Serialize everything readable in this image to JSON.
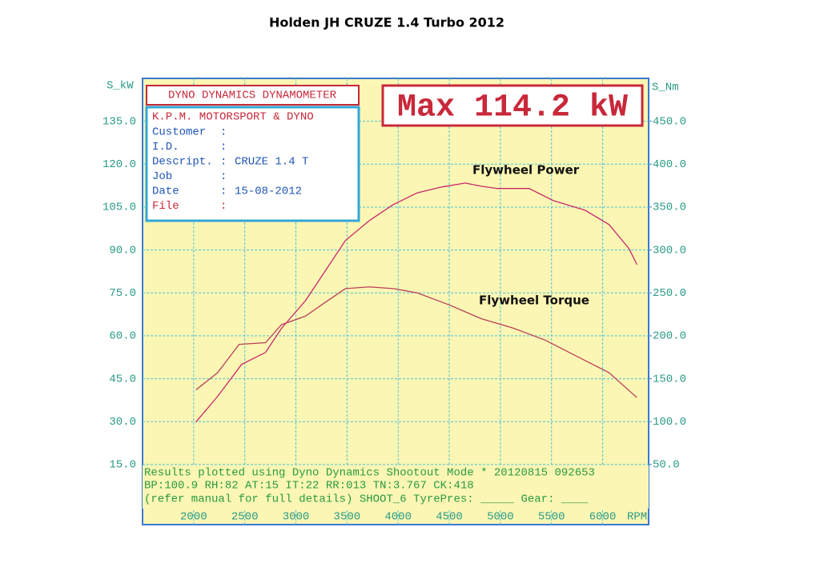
{
  "chart_data": {
    "type": "line",
    "title": "Holden JH CRUZE 1.4 Turbo 2012",
    "ylabel": "S_kW",
    "y2label": "S_Nm",
    "xunit": "RPM",
    "header": "DYNO DYNAMICS DYNAMOMETER",
    "max_label": "Max 114.2 kW",
    "info_box": {
      "heading": "K.P.M. MOTORSPORT & DYNO",
      "fields": [
        {
          "label": "Customer"
        },
        {
          "label": "I.D."
        },
        {
          "label": "Descript.",
          "value": "CRUZE 1.4 T"
        },
        {
          "label": "Job"
        },
        {
          "label": "Date",
          "value": "15-08-2012"
        },
        {
          "label": "File"
        }
      ]
    },
    "footer": [
      "Results plotted using Dyno Dynamics Shootout Mode * 20120815 092653",
      "BP:100.9 RH:82 AT:15 IT:22  RR:013 TN:3.767 CK:418",
      "(refer manual for full details) SHOOT_6  TyrePres: _____ Gear: ____"
    ],
    "xlim": [
      1500,
      6450
    ],
    "xticks": [
      2000,
      2500,
      3000,
      3500,
      4000,
      4500,
      5000,
      5500,
      6000
    ],
    "ylim": [
      -6,
      150
    ],
    "yticks": [
      {
        "value": 15,
        "label": "15.0"
      },
      {
        "value": 30,
        "label": "30.0"
      },
      {
        "value": 45,
        "label": "45.0"
      },
      {
        "value": 60,
        "label": "60.0"
      },
      {
        "value": 75,
        "label": "75.0"
      },
      {
        "value": 90,
        "label": "90.0"
      },
      {
        "value": 105,
        "label": "105.0"
      },
      {
        "value": 120,
        "label": "120.0"
      },
      {
        "value": 135,
        "label": "135.0"
      }
    ],
    "y2lim": [
      -20,
      500
    ],
    "y2ticks": [
      {
        "value": 50,
        "label": "50.0"
      },
      {
        "value": 100,
        "label": "100.0"
      },
      {
        "value": 150,
        "label": "150.0"
      },
      {
        "value": 200,
        "label": "200.0"
      },
      {
        "value": 250,
        "label": "250.0"
      },
      {
        "value": 300,
        "label": "300.0"
      },
      {
        "value": 350,
        "label": "350.0"
      },
      {
        "value": 400,
        "label": "400.0"
      },
      {
        "value": 450,
        "label": "450.0"
      }
    ],
    "grid": true,
    "series": [
      {
        "name": "Flywheel Power",
        "color": "#c8286a",
        "x": [
          2023,
          2234,
          2469,
          2703,
          2859,
          3094,
          3250,
          3484,
          3719,
          3953,
          4188,
          4422,
          4656,
          4813,
          4969,
          5281,
          5516,
          5828,
          6063,
          6258,
          6336
        ],
        "values": [
          29.9,
          38.8,
          50,
          54.2,
          62.6,
          72.3,
          80.7,
          93.3,
          100.3,
          105.9,
          110,
          112,
          113.4,
          112.3,
          111.5,
          111.5,
          107.3,
          103.9,
          98.9,
          90.5,
          84.9
        ]
      },
      {
        "name": "Flywheel Torque",
        "color": "#b8405a",
        "axis": "y2",
        "x": [
          2023,
          2234,
          2445,
          2703,
          2859,
          3094,
          3250,
          3484,
          3719,
          3953,
          4188,
          4500,
          4813,
          5125,
          5438,
          5750,
          6063,
          6336
        ],
        "values": [
          137,
          157,
          190,
          192,
          213,
          223,
          236,
          255,
          257,
          255,
          250,
          236,
          220,
          209,
          195,
          176,
          157,
          128
        ]
      }
    ]
  }
}
